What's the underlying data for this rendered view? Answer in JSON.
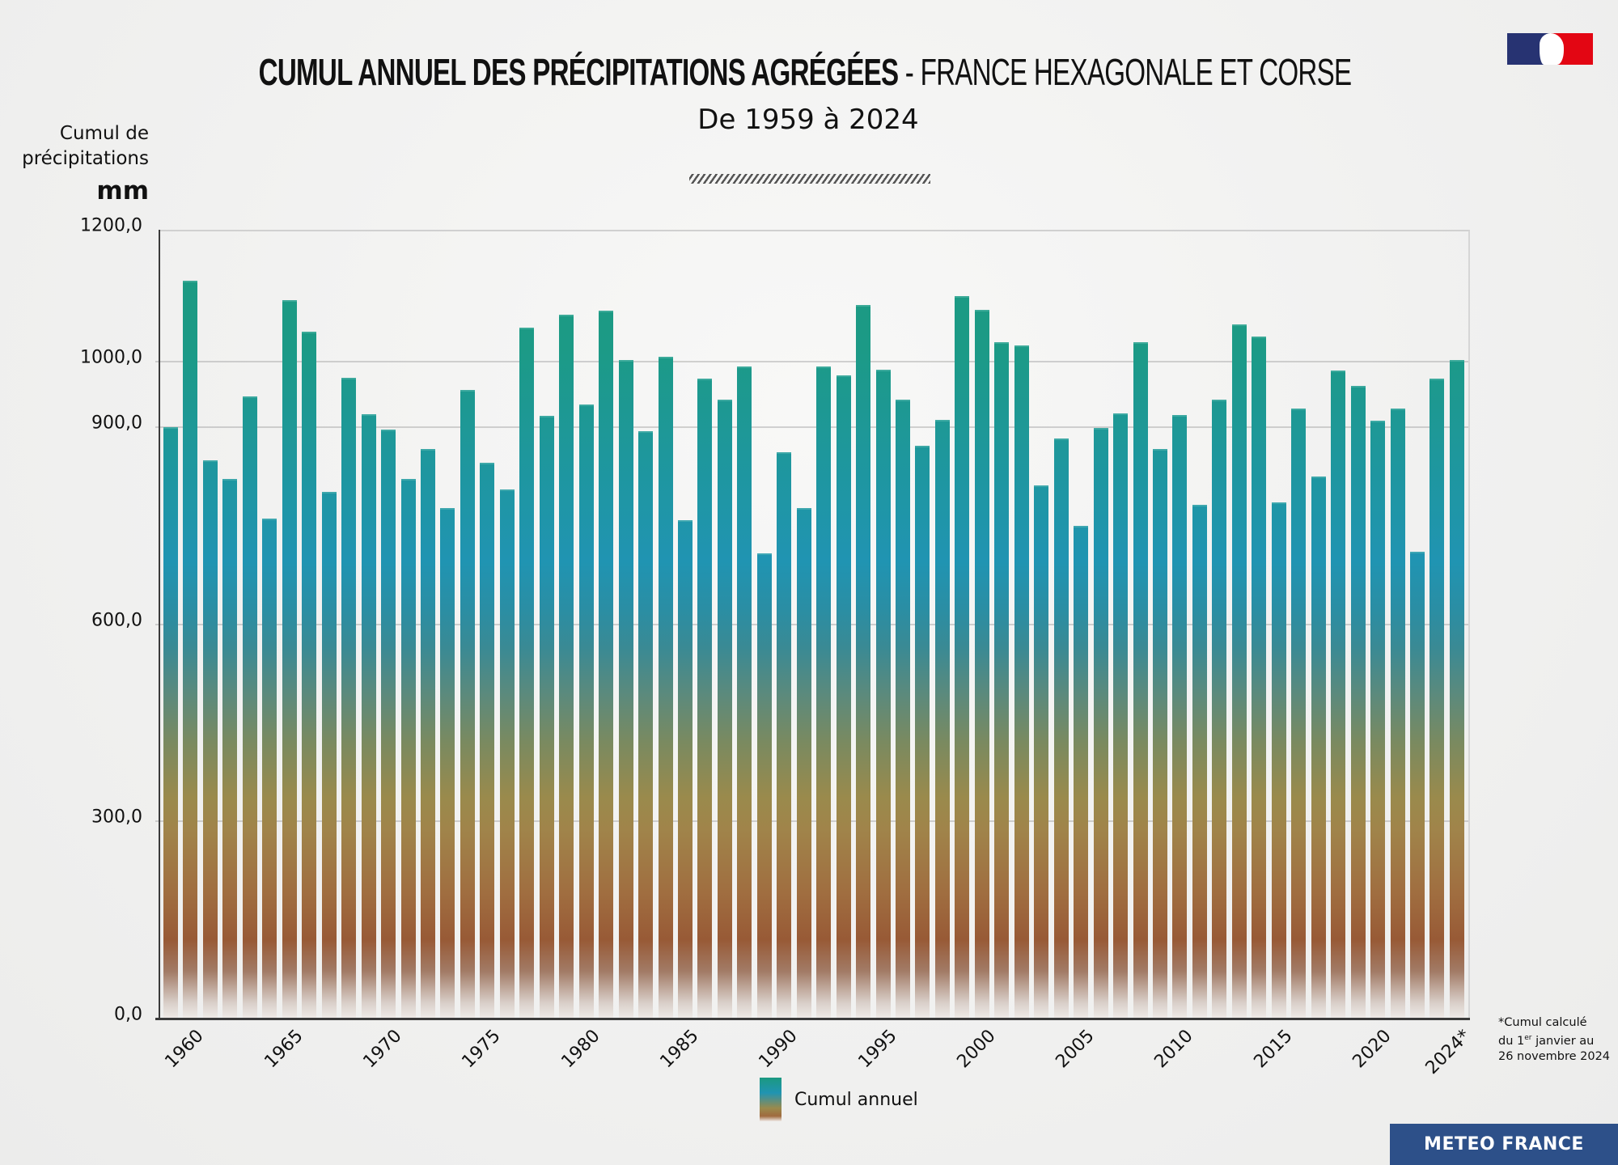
{
  "header": {
    "title_bold": "CUMUL ANNUEL DES PRÉCIPITATIONS AGRÉGÉES",
    "title_light": " - FRANCE HEXAGONALE ET CORSE",
    "subtitle": "De 1959 à 2024",
    "logo": "marianne-flag-logo"
  },
  "yaxis": {
    "label_line1": "Cumul de",
    "label_line2": "précipitations",
    "unit": "mm",
    "ticks": [
      {
        "label": "1200,0",
        "value": 1200
      },
      {
        "label": "1000,0",
        "value": 1000
      },
      {
        "label": "900,0",
        "value": 900
      },
      {
        "label": "600,0",
        "value": 600
      },
      {
        "label": "300,0",
        "value": 300
      },
      {
        "label": "0,0",
        "value": 0
      }
    ]
  },
  "xaxis": {
    "ticks": [
      {
        "label": "1960",
        "year": 1960
      },
      {
        "label": "1965",
        "year": 1965
      },
      {
        "label": "1970",
        "year": 1970
      },
      {
        "label": "1975",
        "year": 1975
      },
      {
        "label": "1980",
        "year": 1980
      },
      {
        "label": "1985",
        "year": 1985
      },
      {
        "label": "1990",
        "year": 1990
      },
      {
        "label": "1995",
        "year": 1995
      },
      {
        "label": "2000",
        "year": 2000
      },
      {
        "label": "2005",
        "year": 2005
      },
      {
        "label": "2010",
        "year": 2010
      },
      {
        "label": "2015",
        "year": 2015
      },
      {
        "label": "2020",
        "year": 2020
      },
      {
        "label": "2024*",
        "year": 2024
      }
    ]
  },
  "legend": {
    "label": "Cumul annuel"
  },
  "footnote": {
    "line1": "*Cumul calculé",
    "line2_pre": "du 1",
    "line2_sup": "er",
    "line2_post": " janvier au",
    "line3": "26 novembre 2024"
  },
  "brand": {
    "label": "METEO FRANCE"
  },
  "colors": {
    "bar_top": "#1b9980",
    "bar_mid": "#2094b2",
    "bar_ochre": "#9a8a4c",
    "bar_brown": "#985a36",
    "brand_blue": "#2d5089",
    "flag_blue": "#273372",
    "flag_red": "#e30613"
  },
  "chart_data": {
    "type": "bar",
    "title": "CUMUL ANNUEL DES PRÉCIPITATIONS AGRÉGÉES - FRANCE HEXAGONALE ET CORSE",
    "subtitle": "De 1959 à 2024",
    "xlabel": "",
    "ylabel": "Cumul de précipitations (mm)",
    "ylim": [
      0,
      1200
    ],
    "yticks": [
      0,
      300,
      600,
      900,
      1000,
      1200
    ],
    "grid": true,
    "legend": [
      "Cumul annuel"
    ],
    "legend_position": "bottom",
    "annotation": "*Cumul calculé du 1er janvier au 26 novembre 2024",
    "categories": [
      1959,
      1960,
      1961,
      1962,
      1963,
      1964,
      1965,
      1966,
      1967,
      1968,
      1969,
      1970,
      1971,
      1972,
      1973,
      1974,
      1975,
      1976,
      1977,
      1978,
      1979,
      1980,
      1981,
      1982,
      1983,
      1984,
      1985,
      1986,
      1987,
      1988,
      1989,
      1990,
      1991,
      1992,
      1993,
      1994,
      1995,
      1996,
      1997,
      1998,
      1999,
      2000,
      2001,
      2002,
      2003,
      2004,
      2005,
      2006,
      2007,
      2008,
      2009,
      2010,
      2011,
      2012,
      2013,
      2014,
      2015,
      2016,
      2017,
      2018,
      2019,
      2020,
      2021,
      2022,
      2023,
      2024
    ],
    "series": [
      {
        "name": "Cumul annuel",
        "values": [
          900,
          1122,
          849,
          821,
          947,
          761,
          1093,
          1045,
          801,
          975,
          919,
          896,
          821,
          866,
          777,
          956,
          846,
          805,
          1051,
          917,
          1071,
          934,
          1077,
          1002,
          894,
          1007,
          758,
          974,
          941,
          992,
          708,
          862,
          777,
          992,
          979,
          1085,
          987,
          941,
          871,
          911,
          1099,
          1078,
          1029,
          1024,
          811,
          883,
          750,
          898,
          921,
          1029,
          867,
          918,
          781,
          942,
          1056,
          1037,
          785,
          928,
          825,
          986,
          962,
          910,
          928,
          710,
          974,
          1002
        ]
      }
    ]
  }
}
